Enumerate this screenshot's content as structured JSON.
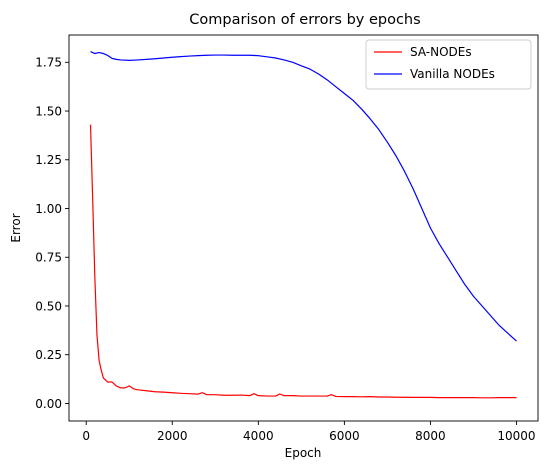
{
  "chart_data": {
    "type": "line",
    "title": "Comparison of errors by epochs",
    "xlabel": "Epoch",
    "ylabel": "Error",
    "xlim": [
      -400,
      10500
    ],
    "ylim": [
      -0.09,
      1.89
    ],
    "xticks": [
      0,
      2000,
      4000,
      6000,
      8000,
      10000
    ],
    "xtick_labels": [
      "0",
      "2000",
      "4000",
      "6000",
      "8000",
      "10000"
    ],
    "yticks": [
      0.0,
      0.25,
      0.5,
      0.75,
      1.0,
      1.25,
      1.5,
      1.75
    ],
    "ytick_labels": [
      "0.00",
      "0.25",
      "0.50",
      "0.75",
      "1.00",
      "1.25",
      "1.50",
      "1.75"
    ],
    "grid": false,
    "legend_position": "top-right",
    "colors": {
      "SA-NODEs": "#ff0000",
      "Vanilla NODEs": "#0000ff"
    },
    "series": [
      {
        "name": "SA-NODEs",
        "color": "#ff0000",
        "x": [
          100,
          150,
          200,
          250,
          300,
          350,
          400,
          450,
          500,
          600,
          700,
          800,
          900,
          1000,
          1100,
          1200,
          1400,
          1600,
          1800,
          2000,
          2200,
          2400,
          2600,
          2700,
          2800,
          3000,
          3200,
          3400,
          3600,
          3800,
          3900,
          4000,
          4200,
          4400,
          4500,
          4600,
          4800,
          5000,
          5200,
          5400,
          5600,
          5700,
          5800,
          6000,
          6200,
          6400,
          6600,
          6800,
          7000,
          7200,
          7400,
          7600,
          7800,
          8000,
          8200,
          8400,
          8600,
          8800,
          9000,
          9200,
          9400,
          9600,
          9800,
          10000
        ],
        "y": [
          1.43,
          1.05,
          0.65,
          0.35,
          0.22,
          0.17,
          0.13,
          0.12,
          0.11,
          0.11,
          0.09,
          0.08,
          0.08,
          0.09,
          0.075,
          0.07,
          0.065,
          0.06,
          0.058,
          0.055,
          0.052,
          0.05,
          0.048,
          0.055,
          0.045,
          0.045,
          0.042,
          0.042,
          0.043,
          0.04,
          0.05,
          0.04,
          0.038,
          0.038,
          0.048,
          0.04,
          0.04,
          0.038,
          0.038,
          0.038,
          0.038,
          0.045,
          0.036,
          0.035,
          0.035,
          0.034,
          0.035,
          0.033,
          0.033,
          0.032,
          0.032,
          0.031,
          0.031,
          0.031,
          0.03,
          0.03,
          0.03,
          0.03,
          0.03,
          0.029,
          0.029,
          0.03,
          0.03,
          0.03
        ]
      },
      {
        "name": "Vanilla NODEs",
        "color": "#0000ff",
        "x": [
          100,
          200,
          300,
          400,
          500,
          600,
          700,
          800,
          1000,
          1200,
          1400,
          1600,
          1800,
          2000,
          2200,
          2400,
          2600,
          2800,
          3000,
          3200,
          3400,
          3600,
          3800,
          4000,
          4200,
          4400,
          4600,
          4800,
          5000,
          5200,
          5400,
          5600,
          5800,
          6000,
          6200,
          6400,
          6600,
          6800,
          7000,
          7200,
          7400,
          7600,
          7800,
          8000,
          8200,
          8400,
          8600,
          8800,
          9000,
          9200,
          9400,
          9600,
          9800,
          10000
        ],
        "y": [
          1.805,
          1.795,
          1.8,
          1.795,
          1.785,
          1.77,
          1.765,
          1.762,
          1.76,
          1.762,
          1.765,
          1.768,
          1.772,
          1.776,
          1.779,
          1.782,
          1.784,
          1.786,
          1.787,
          1.787,
          1.786,
          1.786,
          1.786,
          1.784,
          1.778,
          1.772,
          1.762,
          1.75,
          1.732,
          1.715,
          1.69,
          1.66,
          1.625,
          1.59,
          1.555,
          1.51,
          1.46,
          1.405,
          1.34,
          1.27,
          1.19,
          1.1,
          1.0,
          0.9,
          0.82,
          0.75,
          0.68,
          0.61,
          0.55,
          0.5,
          0.45,
          0.4,
          0.36,
          0.32
        ]
      }
    ]
  }
}
